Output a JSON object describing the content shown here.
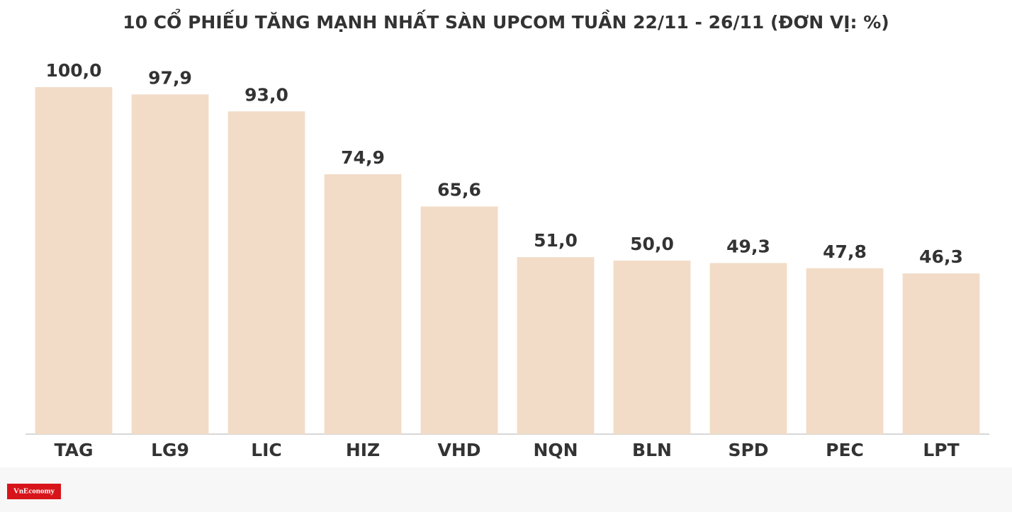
{
  "chart_data": {
    "type": "bar",
    "title": "10 CỔ PHIẾU TĂNG MẠNH NHẤT SÀN UPCOM TUẦN 22/11 - 26/11 (ĐƠN VỊ: %)",
    "categories": [
      "TAG",
      "LG9",
      "LIC",
      "HIZ",
      "VHD",
      "NQN",
      "BLN",
      "SPD",
      "PEC",
      "LPT"
    ],
    "values": [
      100.0,
      97.9,
      93.0,
      74.9,
      65.6,
      51.0,
      50.0,
      49.3,
      47.8,
      46.3
    ],
    "value_labels": [
      "100,0",
      "97,9",
      "93,0",
      "74,9",
      "65,6",
      "51,0",
      "50,0",
      "49,3",
      "47,8",
      "46,3"
    ],
    "color": "#f2dcc8",
    "ylim": [
      0,
      100
    ]
  },
  "logo": "VnEconomy"
}
